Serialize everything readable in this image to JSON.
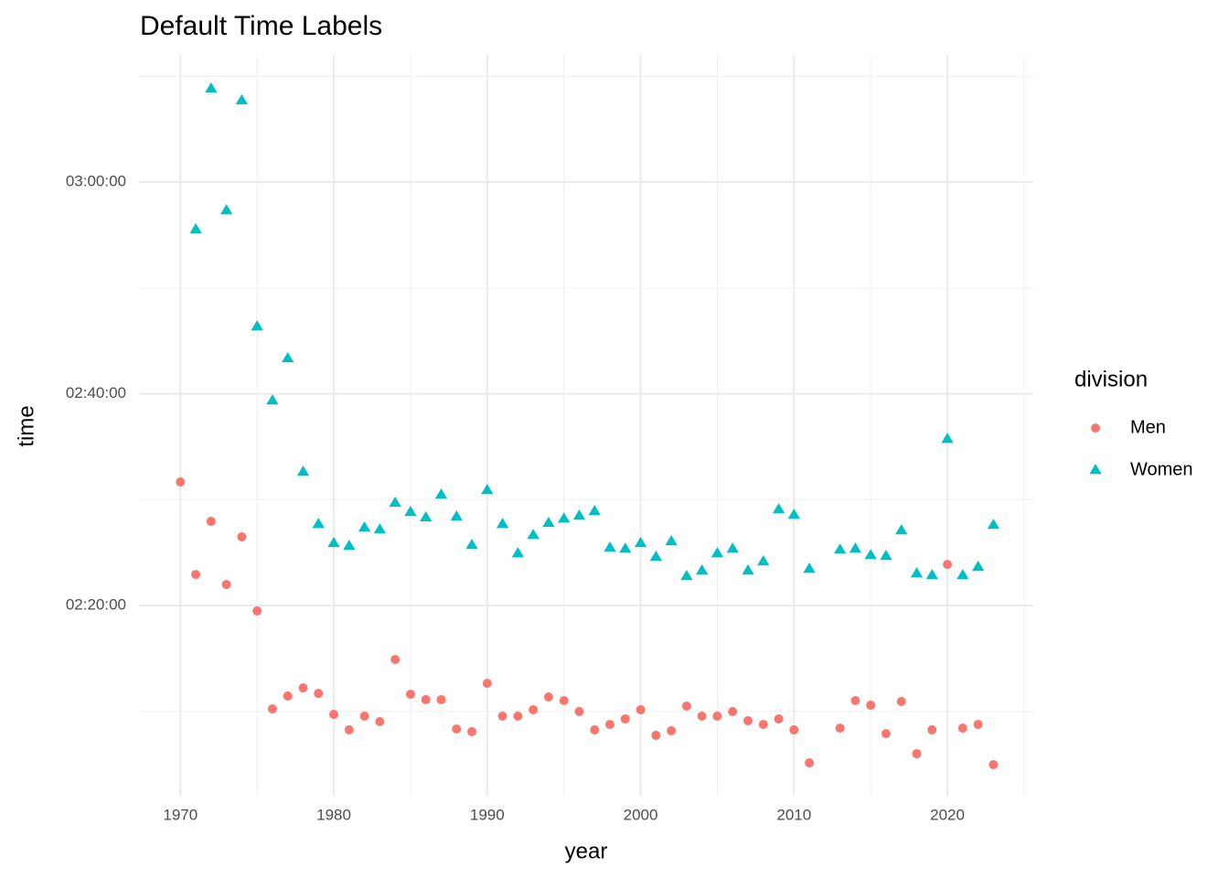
{
  "chart_data": {
    "type": "scatter",
    "title": "Default Time Labels",
    "x_label": "year",
    "y_label": "time",
    "legend_title": "division",
    "legend_position": "right",
    "xlim": [
      1967.3,
      2025.6
    ],
    "ylim": [
      7322,
      11521
    ],
    "xticks": [
      1970,
      1980,
      1990,
      2000,
      2010,
      2020
    ],
    "x_minor_ticks": [
      1975,
      1985,
      1995,
      2005,
      2015,
      2025
    ],
    "yticks": [
      {
        "value": 8400,
        "label": "02:20:00"
      },
      {
        "value": 9600,
        "label": "02:40:00"
      },
      {
        "value": 10800,
        "label": "03:00:00"
      }
    ],
    "y_minor_ticks": [
      7800,
      9000,
      10200,
      11400
    ],
    "grid": true,
    "series": [
      {
        "name": "Men",
        "color": "#F8766D",
        "shape": "circle",
        "x": [
          1970,
          1971,
          1972,
          1973,
          1974,
          1975,
          1976,
          1977,
          1978,
          1979,
          1980,
          1981,
          1982,
          1983,
          1984,
          1985,
          1986,
          1987,
          1988,
          1989,
          1990,
          1991,
          1992,
          1993,
          1994,
          1995,
          1996,
          1997,
          1998,
          1999,
          2000,
          2001,
          2002,
          2003,
          2004,
          2005,
          2006,
          2007,
          2008,
          2009,
          2010,
          2011,
          2013,
          2014,
          2015,
          2016,
          2017,
          2018,
          2019,
          2020,
          2021,
          2022,
          2023
        ],
        "values": [
          9100,
          8576,
          8877,
          8519,
          8789,
          8369,
          7814,
          7887,
          7933,
          7902,
          7783,
          7695,
          7773,
          7742,
          8094,
          7897,
          7866,
          7866,
          7700,
          7685,
          7959,
          7773,
          7773,
          7809,
          7882,
          7861,
          7799,
          7695,
          7726,
          7757,
          7809,
          7664,
          7690,
          7830,
          7773,
          7773,
          7799,
          7747,
          7726,
          7757,
          7695,
          7508,
          7705,
          7861,
          7835,
          7674,
          7856,
          7560,
          7695,
          8633,
          7705,
          7726,
          7498
        ]
      },
      {
        "name": "Women",
        "color": "#00BFC4",
        "shape": "triangle",
        "x": [
          1971,
          1972,
          1973,
          1974,
          1975,
          1976,
          1977,
          1978,
          1979,
          1980,
          1981,
          1982,
          1983,
          1984,
          1985,
          1986,
          1987,
          1988,
          1989,
          1990,
          1991,
          1992,
          1993,
          1994,
          1995,
          1996,
          1997,
          1998,
          1999,
          2000,
          2001,
          2002,
          2003,
          2004,
          2005,
          2006,
          2007,
          2008,
          2009,
          2010,
          2011,
          2013,
          2014,
          2015,
          2016,
          2017,
          2018,
          2019,
          2020,
          2021,
          2022,
          2023
        ],
        "values": [
          10531,
          11329,
          10639,
          11262,
          9981,
          9561,
          9800,
          9157,
          8861,
          8753,
          8737,
          8841,
          8830,
          8981,
          8929,
          8898,
          9027,
          8903,
          8742,
          9053,
          8861,
          8695,
          8799,
          8867,
          8892,
          8908,
          8934,
          8727,
          8721,
          8753,
          8675,
          8763,
          8566,
          8597,
          8695,
          8721,
          8597,
          8649,
          8944,
          8913,
          8607,
          8716,
          8721,
          8685,
          8680,
          8825,
          8581,
          8571,
          9343,
          8571,
          8618,
          8856
        ]
      }
    ]
  }
}
